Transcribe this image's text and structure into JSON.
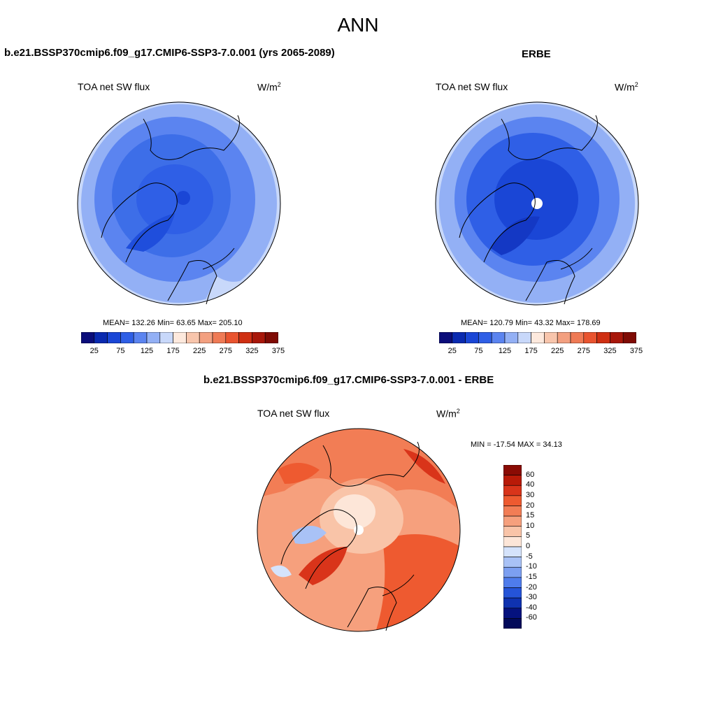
{
  "title": "ANN",
  "top_left": {
    "case": "b.e21.BSSP370cmip6.f09_g17.CMIP6-SSP3-7.0.001 (yrs 2065-2089)",
    "variable": "TOA net SW flux",
    "units_base": "W/m",
    "units_exp": "2",
    "stats": "MEAN= 132.26  Min=  63.65  Max= 205.10"
  },
  "top_right": {
    "case": "ERBE",
    "variable": "TOA net SW flux",
    "units_base": "W/m",
    "units_exp": "2",
    "stats": "MEAN= 120.79  Min=  43.32  Max= 178.69"
  },
  "bottom": {
    "case": "b.e21.BSSP370cmip6.f09_g17.CMIP6-SSP3-7.0.001 - ERBE",
    "variable": "TOA net SW flux",
    "units_base": "W/m",
    "units_exp": "2",
    "stats": "MIN = -17.54 MAX =  34.13"
  },
  "colorbar_top": {
    "labels": [
      "25",
      "75",
      "125",
      "175",
      "225",
      "275",
      "325",
      "375"
    ],
    "colors": [
      "#0b0d7a",
      "#0a2ab0",
      "#1a46d6",
      "#2f5fe6",
      "#5b84f0",
      "#93b0f5",
      "#c8d8fa",
      "#fde9dd",
      "#f8c5ac",
      "#f3a080",
      "#ef7a55",
      "#e9542f",
      "#cf2f12",
      "#a8170a",
      "#7f0b04"
    ]
  },
  "colorbar_bottom": {
    "labels": [
      "60",
      "40",
      "30",
      "20",
      "15",
      "10",
      "5",
      "0",
      "-5",
      "-10",
      "-15",
      "-20",
      "-30",
      "-40",
      "-60"
    ],
    "colors": [
      "#8a0b04",
      "#b81a08",
      "#d9341a",
      "#ee5a30",
      "#f27d55",
      "#f6a07d",
      "#f9c4a8",
      "#fde6d8",
      "#d5e3fb",
      "#a9c2f6",
      "#7c9ff1",
      "#4f7cec",
      "#2554d8",
      "#0f32b0",
      "#05127e",
      "#020a5a"
    ]
  },
  "colors": {
    "model_map_base": "#3d6ee8",
    "obs_map_base": "#3660e6",
    "diff_map_base": "#f19a78"
  }
}
